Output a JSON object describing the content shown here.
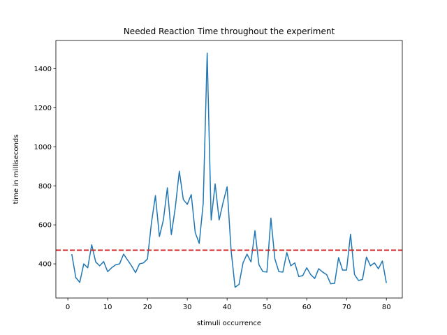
{
  "chart_data": {
    "type": "line",
    "title": "Needed Reaction Time throughout the experiment",
    "xlabel": "stimuli occurrence",
    "ylabel": "time in milliseconds",
    "xlim": [
      -3,
      84
    ],
    "ylim": [
      225,
      1545
    ],
    "xticks": [
      0,
      10,
      20,
      30,
      40,
      50,
      60,
      70,
      80
    ],
    "yticks": [
      400,
      600,
      800,
      1000,
      1200,
      1400
    ],
    "grid": false,
    "series": [
      {
        "color": "#1f77b4",
        "x": [
          1,
          2,
          3,
          4,
          5,
          6,
          7,
          8,
          9,
          10,
          11,
          12,
          13,
          14,
          15,
          16,
          17,
          18,
          19,
          20,
          21,
          22,
          23,
          24,
          25,
          26,
          27,
          28,
          29,
          30,
          31,
          32,
          33,
          34,
          35,
          36,
          37,
          38,
          39,
          40,
          41,
          42,
          43,
          44,
          45,
          46,
          47,
          48,
          49,
          50,
          51,
          52,
          53,
          54,
          55,
          56,
          57,
          58,
          59,
          60,
          61,
          62,
          63,
          64,
          65,
          66,
          67,
          68,
          69,
          70,
          71,
          72,
          73,
          74,
          75,
          76,
          77,
          78,
          79,
          80
        ],
        "values": [
          450,
          330,
          305,
          400,
          380,
          498,
          410,
          390,
          412,
          360,
          380,
          395,
          400,
          450,
          420,
          390,
          355,
          400,
          405,
          425,
          610,
          750,
          540,
          625,
          790,
          550,
          690,
          875,
          730,
          705,
          755,
          560,
          505,
          710,
          1480,
          625,
          810,
          625,
          715,
          795,
          470,
          280,
          295,
          405,
          450,
          410,
          570,
          395,
          360,
          358,
          635,
          425,
          360,
          358,
          458,
          390,
          405,
          335,
          340,
          380,
          345,
          325,
          375,
          358,
          345,
          298,
          300,
          432,
          368,
          368,
          552,
          345,
          315,
          320,
          435,
          390,
          405,
          375,
          415,
          302
        ]
      }
    ],
    "reference_line": {
      "value": 470,
      "style": "dashed",
      "color": "#d62728"
    }
  }
}
